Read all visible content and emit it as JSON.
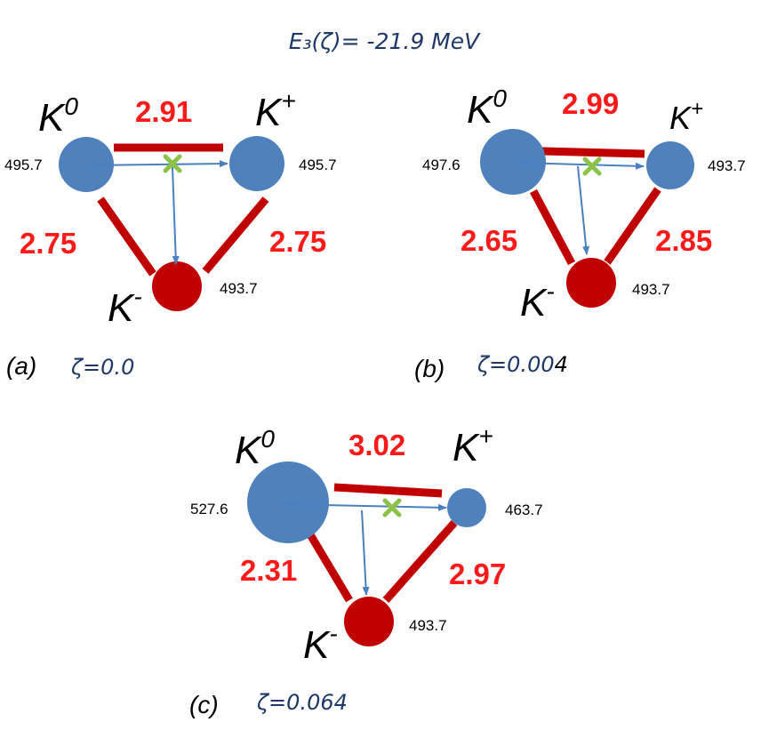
{
  "title": "E₃(ζ)= -21.9 MeV",
  "colors": {
    "neutral_kaon": "#4f81bd",
    "charged_kaon": "#c00000",
    "distance_label": "#ff1a1a",
    "bond": "#c00000",
    "arrow": "#4a7fc1",
    "cross": "#8bc34a",
    "title": "#1f3868"
  },
  "particles": {
    "k0": "K",
    "k0_sup": "0",
    "kplus": "K",
    "kplus_sup": "+",
    "kminus": "K",
    "kminus_sup": "-"
  },
  "panels": [
    {
      "label": "(a)",
      "zeta": "ζ=0.0",
      "zeta_tail": "",
      "masses": {
        "k0": "495.7",
        "kplus": "495.7",
        "kminus": "493.7"
      },
      "distances": {
        "k0_kplus": "2.91",
        "k0_kminus": "2.75",
        "kplus_kminus": "2.75"
      }
    },
    {
      "label": "(b)",
      "zeta": "ζ=0.00",
      "zeta_tail": "4",
      "masses": {
        "k0": "497.6",
        "kplus": "493.7",
        "kminus": "493.7"
      },
      "distances": {
        "k0_kplus": "2.99",
        "k0_kminus": "2.65",
        "kplus_kminus": "2.85"
      }
    },
    {
      "label": "(c)",
      "zeta": "ζ=0.064",
      "zeta_tail": "",
      "masses": {
        "k0": "527.6",
        "kplus": "463.7",
        "kminus": "493.7"
      },
      "distances": {
        "k0_kplus": "3.02",
        "k0_kminus": "2.31",
        "kplus_kminus": "2.97"
      }
    }
  ]
}
